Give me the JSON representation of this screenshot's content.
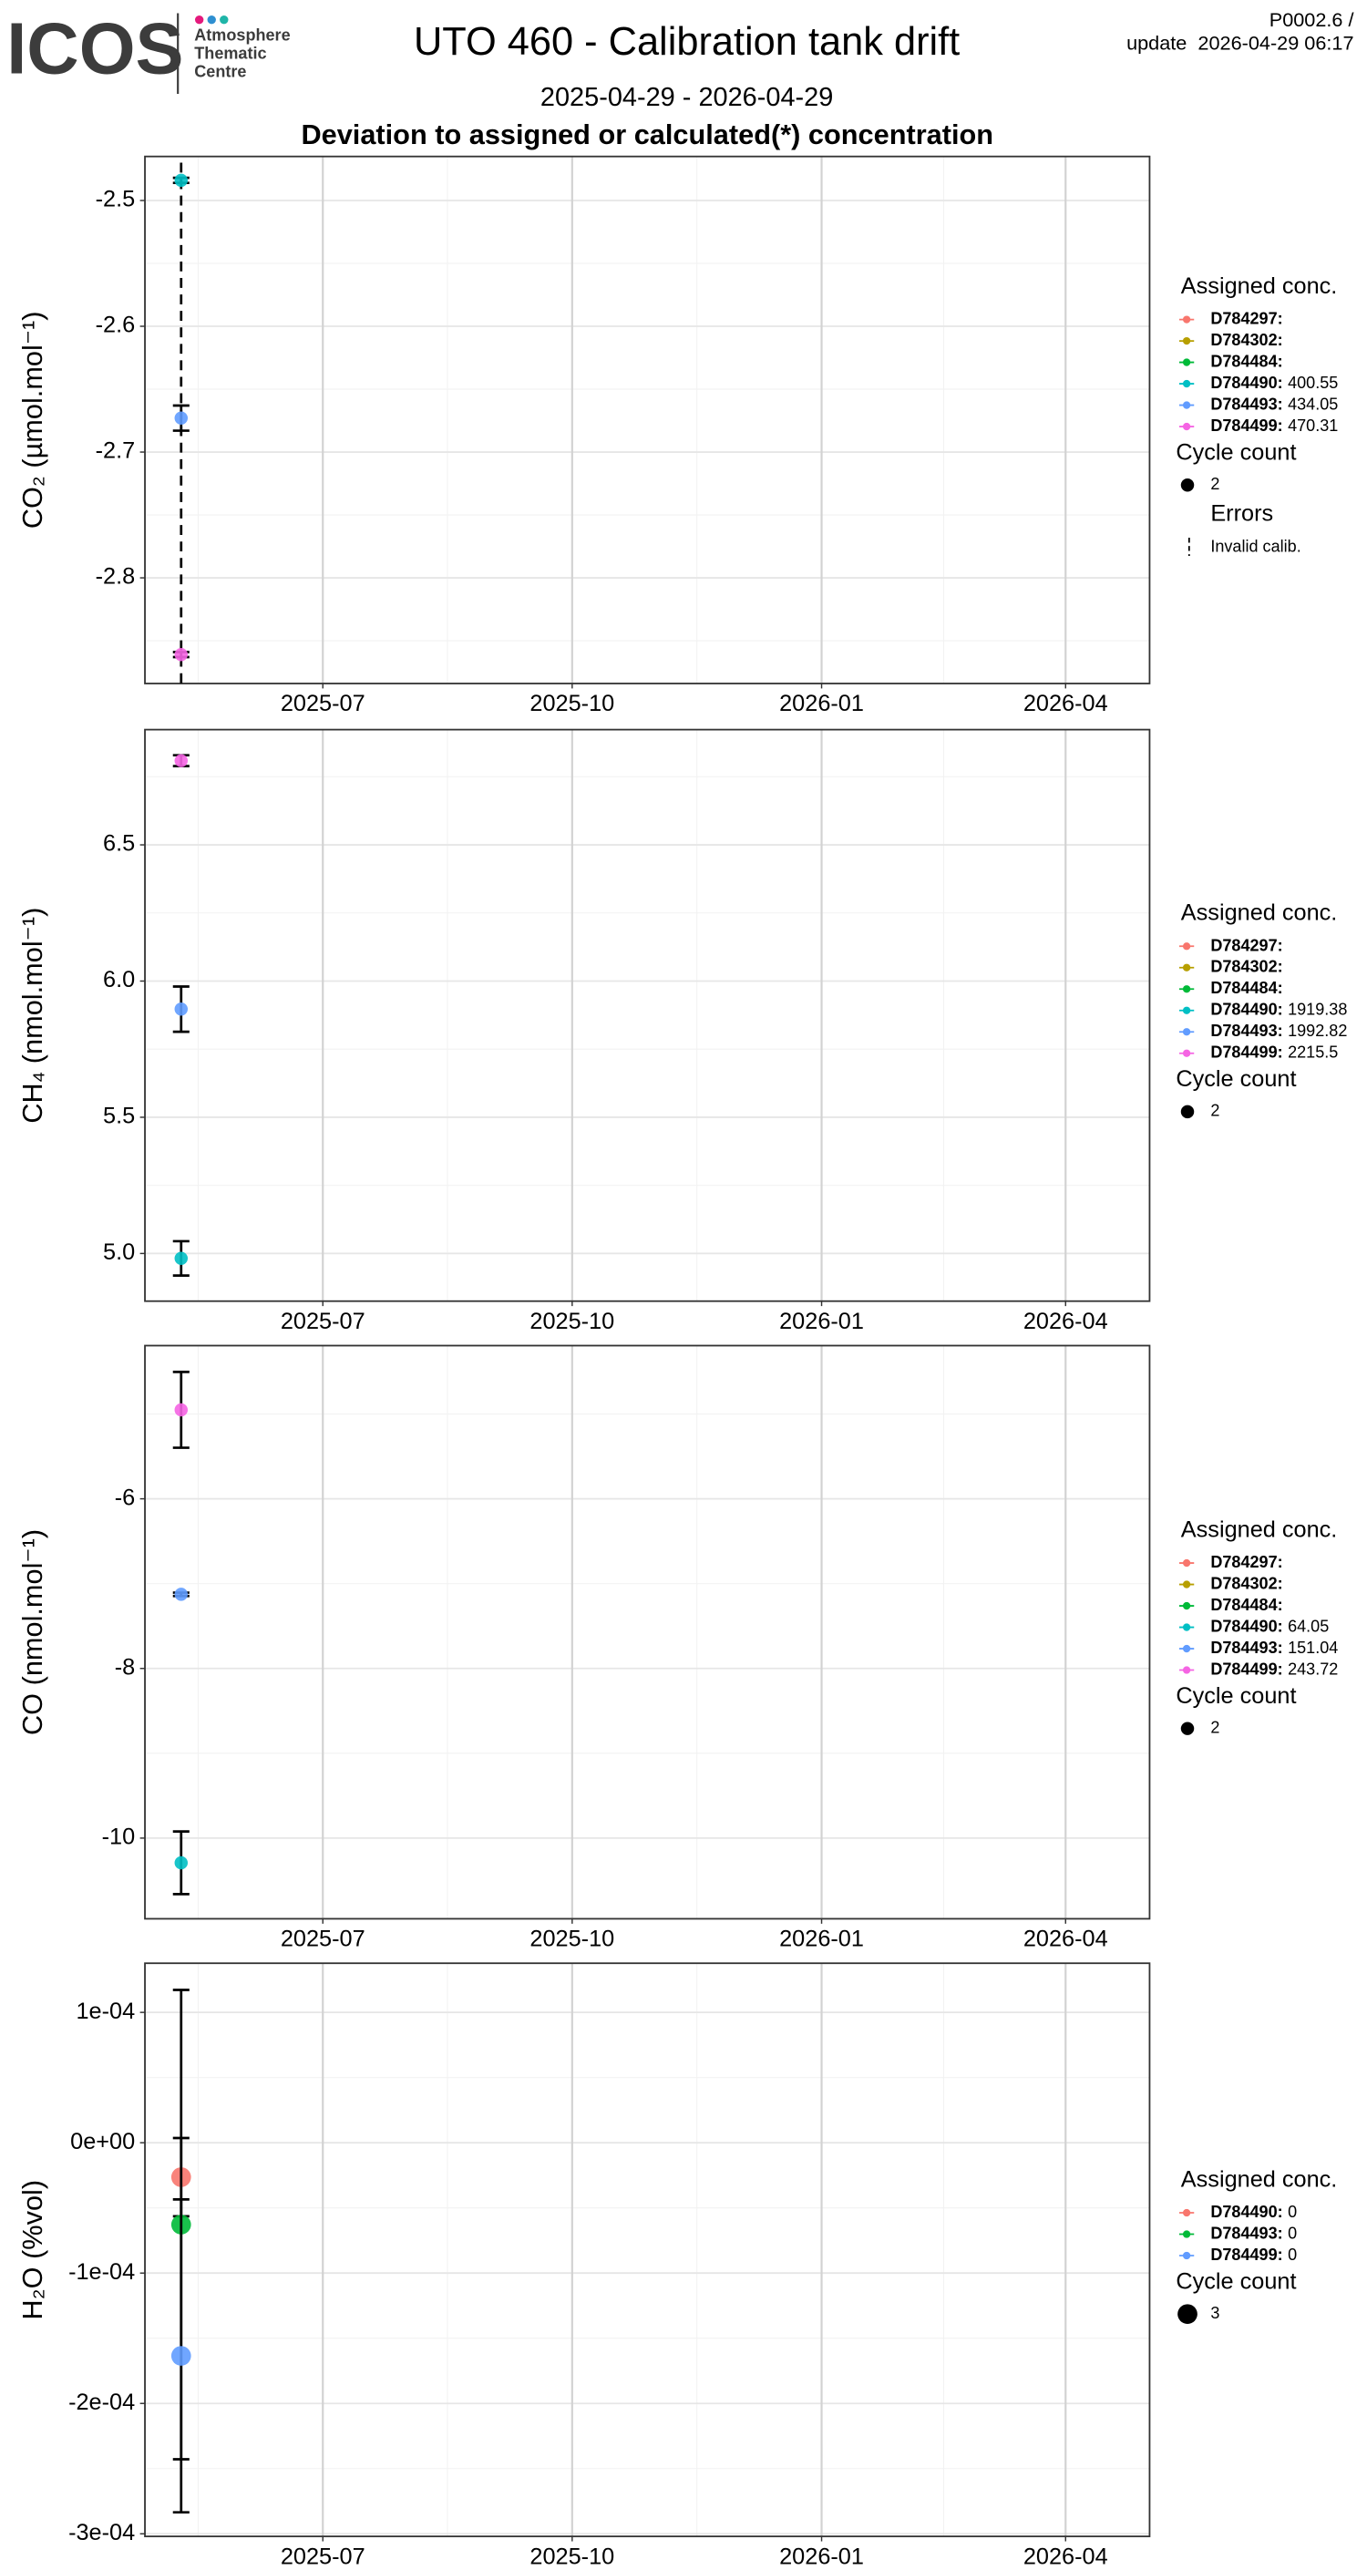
{
  "header": {
    "logo": "ICOS",
    "logo_lines": [
      "Atmosphere",
      "Thematic",
      "Centre"
    ],
    "title": "UTO 460 - Calibration tank drift",
    "period": "2025-04-29 - 2026-04-29",
    "subtitle": "Deviation to assigned or calculated(*) concentration",
    "code": "P0002.6 /",
    "update": "update  2026-04-29 06:17"
  },
  "chart_data": [
    {
      "type": "scatter",
      "ylabel": "CO₂ (µmol.mol⁻¹)",
      "grid": true,
      "legend_position": "right",
      "xlim": [
        2025.3161,
        2026.3315
      ],
      "xticks": [
        {
          "value": 2025.4959,
          "label": "2025-07"
        },
        {
          "value": 2025.7479,
          "label": "2025-10"
        },
        {
          "value": 2026.0,
          "label": "2026-01"
        },
        {
          "value": 2026.2466,
          "label": "2026-04"
        }
      ],
      "ylim": [
        -2.884,
        -2.465
      ],
      "yticks": [
        -2.5,
        -2.6,
        -2.7,
        -2.8
      ],
      "legend_title": "Assigned conc.",
      "size_title": "Cycle count",
      "size_values": [
        2
      ],
      "series": [
        {
          "name": "D784297:",
          "color": "#F8766D",
          "x": [],
          "values": [],
          "errors": [],
          "sizes": []
        },
        {
          "name": "D784302:",
          "color": "#B79F00",
          "x": [],
          "values": [],
          "errors": [],
          "sizes": []
        },
        {
          "name": "D784484:",
          "color": "#00BA38",
          "x": [],
          "values": [],
          "errors": [],
          "sizes": []
        },
        {
          "name": "D784490:",
          "color": "#00BFC4",
          "assigned": 400.55,
          "x": [
            2025.3527
          ],
          "values": [
            -2.484
          ],
          "errors": [
            0.002
          ],
          "sizes": [
            2
          ]
        },
        {
          "name": "D784493:",
          "color": "#619CFF",
          "assigned": 434.05,
          "x": [
            2025.3527
          ],
          "values": [
            -2.673
          ],
          "errors": [
            0.01
          ],
          "sizes": [
            2
          ]
        },
        {
          "name": "D784499:",
          "color": "#F564E3",
          "assigned": 470.31,
          "x": [
            2025.3527
          ],
          "values": [
            -2.861
          ],
          "errors": [
            0.002
          ],
          "sizes": [
            2
          ]
        }
      ],
      "invalid_calib": {
        "title": "Errors",
        "label": "Invalid calib.",
        "x": [
          2025.3527
        ],
        "values": [
          -2.673
        ],
        "errors": [
          0.25
        ]
      }
    },
    {
      "type": "scatter",
      "ylabel": "CH₄ (nmol.mol⁻¹)",
      "grid": true,
      "legend_position": "right",
      "xlim": [
        2025.3161,
        2026.3315
      ],
      "xticks": [
        {
          "value": 2025.4959,
          "label": "2025-07"
        },
        {
          "value": 2025.7479,
          "label": "2025-10"
        },
        {
          "value": 2026.0,
          "label": "2026-01"
        },
        {
          "value": 2026.2466,
          "label": "2026-04"
        }
      ],
      "ylim": [
        4.825,
        6.923
      ],
      "yticks": [
        6.5,
        {
          "value": 6.0,
          "label": "6.0"
        },
        5.5,
        {
          "value": 5.0,
          "label": "5.0"
        }
      ],
      "legend_title": "Assigned conc.",
      "size_title": "Cycle count",
      "size_values": [
        2
      ],
      "series": [
        {
          "name": "D784297:",
          "color": "#F8766D",
          "x": [],
          "values": [],
          "errors": [],
          "sizes": []
        },
        {
          "name": "D784302:",
          "color": "#B79F00",
          "x": [],
          "values": [],
          "errors": [],
          "sizes": []
        },
        {
          "name": "D784484:",
          "color": "#00BA38",
          "x": [],
          "values": [],
          "errors": [],
          "sizes": []
        },
        {
          "name": "D784490:",
          "color": "#00BFC4",
          "assigned": 1919.38,
          "x": [
            2025.3527
          ],
          "values": [
            4.982
          ],
          "errors": [
            0.063
          ],
          "sizes": [
            2
          ]
        },
        {
          "name": "D784493:",
          "color": "#619CFF",
          "assigned": 1992.82,
          "x": [
            2025.3527
          ],
          "values": [
            5.897
          ],
          "errors": [
            0.083
          ],
          "sizes": [
            2
          ]
        },
        {
          "name": "D784499:",
          "color": "#F564E3",
          "assigned": 2215.5,
          "x": [
            2025.3527
          ],
          "values": [
            6.809
          ],
          "errors": [
            0.02
          ],
          "sizes": [
            2
          ]
        }
      ]
    },
    {
      "type": "scatter",
      "ylabel": "CO (nmol.mol⁻¹)",
      "grid": true,
      "legend_position": "right",
      "xlim": [
        2025.3161,
        2026.3315
      ],
      "xticks": [
        {
          "value": 2025.4959,
          "label": "2025-07"
        },
        {
          "value": 2025.7479,
          "label": "2025-10"
        },
        {
          "value": 2026.0,
          "label": "2026-01"
        },
        {
          "value": 2026.2466,
          "label": "2026-04"
        }
      ],
      "ylim": [
        -10.951,
        -4.194
      ],
      "yticks": [
        -6,
        -8,
        -10
      ],
      "legend_title": "Assigned conc.",
      "size_title": "Cycle count",
      "size_values": [
        2
      ],
      "series": [
        {
          "name": "D784297:",
          "color": "#F8766D",
          "x": [],
          "values": [],
          "errors": [],
          "sizes": []
        },
        {
          "name": "D784302:",
          "color": "#B79F00",
          "x": [],
          "values": [],
          "errors": [],
          "sizes": []
        },
        {
          "name": "D784484:",
          "color": "#00BA38",
          "x": [],
          "values": [],
          "errors": [],
          "sizes": []
        },
        {
          "name": "D784490:",
          "color": "#00BFC4",
          "assigned": 64.05,
          "x": [
            2025.3527
          ],
          "values": [
            -10.291
          ],
          "errors": [
            0.369
          ],
          "sizes": [
            2
          ]
        },
        {
          "name": "D784493:",
          "color": "#619CFF",
          "assigned": 151.04,
          "x": [
            2025.3527
          ],
          "values": [
            -7.126
          ],
          "errors": [
            0.02
          ],
          "sizes": [
            2
          ]
        },
        {
          "name": "D784499:",
          "color": "#F564E3",
          "assigned": 243.72,
          "x": [
            2025.3527
          ],
          "values": [
            -4.951
          ],
          "errors": [
            0.447
          ],
          "sizes": [
            2
          ]
        }
      ]
    },
    {
      "type": "scatter",
      "ylabel": "H₂O (%vol)",
      "grid": true,
      "legend_position": "right",
      "xlim": [
        2025.3161,
        2026.3315
      ],
      "xticks": [
        {
          "value": 2025.4959,
          "label": "2025-07"
        },
        {
          "value": 2025.7479,
          "label": "2025-10"
        },
        {
          "value": 2026.0,
          "label": "2026-01"
        },
        {
          "value": 2026.2466,
          "label": "2026-04"
        }
      ],
      "ylim": [
        -0.000302,
        0.0001377
      ],
      "yticks": [
        {
          "value": 0.0001,
          "label": "1e-04"
        },
        {
          "value": 0,
          "label": "0e+00"
        },
        {
          "value": -0.0001,
          "label": "-1e-04"
        },
        {
          "value": -0.0002,
          "label": "-2e-04"
        },
        {
          "value": -0.0003,
          "label": "-3e-04"
        }
      ],
      "legend_title": "Assigned conc.",
      "size_title": "Cycle count",
      "size_values": [
        3
      ],
      "series": [
        {
          "name": "D784490:",
          "color": "#F8766D",
          "assigned": 0,
          "x": [
            2025.3527
          ],
          "values": [
            -2.64e-05
          ],
          "errors": [
            3e-05
          ],
          "sizes": [
            3
          ]
        },
        {
          "name": "D784493:",
          "color": "#00BA38",
          "assigned": 0,
          "x": [
            2025.3527
          ],
          "values": [
            -6.28e-05
          ],
          "errors": [
            0.00018
          ],
          "sizes": [
            3
          ]
        },
        {
          "name": "D784499:",
          "color": "#619CFF",
          "assigned": 0,
          "x": [
            2025.3527
          ],
          "values": [
            -0.0001635
          ],
          "errors": [
            0.00012
          ],
          "sizes": [
            3
          ]
        }
      ]
    }
  ]
}
